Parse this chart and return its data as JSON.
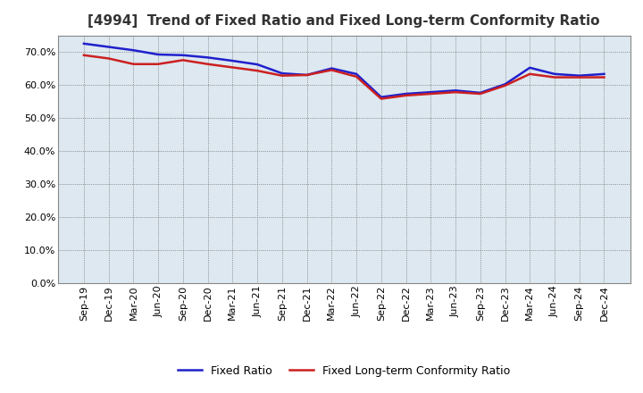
{
  "title": "[4994]  Trend of Fixed Ratio and Fixed Long-term Conformity Ratio",
  "x_labels": [
    "Sep-19",
    "Dec-19",
    "Mar-20",
    "Jun-20",
    "Sep-20",
    "Dec-20",
    "Mar-21",
    "Jun-21",
    "Sep-21",
    "Dec-21",
    "Mar-22",
    "Jun-22",
    "Sep-22",
    "Dec-22",
    "Mar-23",
    "Jun-23",
    "Sep-23",
    "Dec-23",
    "Mar-24",
    "Jun-24",
    "Sep-24",
    "Dec-24"
  ],
  "fixed_ratio": [
    72.5,
    71.5,
    70.5,
    69.2,
    69.0,
    68.3,
    67.3,
    66.2,
    63.5,
    63.0,
    65.0,
    63.3,
    56.3,
    57.3,
    57.8,
    58.3,
    57.6,
    60.2,
    65.2,
    63.3,
    62.8,
    63.3
  ],
  "fixed_lt_conformity": [
    69.0,
    68.0,
    66.3,
    66.3,
    67.5,
    66.3,
    65.3,
    64.3,
    62.8,
    63.0,
    64.5,
    62.5,
    55.8,
    56.8,
    57.3,
    57.8,
    57.3,
    59.8,
    63.3,
    62.3,
    62.3,
    62.3
  ],
  "fixed_ratio_color": "#2020cc",
  "fixed_lt_color": "#cc2020",
  "ylim_min": 0,
  "ylim_max": 75,
  "yticks": [
    0,
    10,
    20,
    30,
    40,
    50,
    60,
    70
  ],
  "bg_color": "#ffffff",
  "plot_bg_color": "#dde8f0",
  "grid_color": "#555555",
  "title_fontsize": 11,
  "tick_fontsize": 8,
  "legend_label_fixed": "Fixed Ratio",
  "legend_label_lt": "Fixed Long-term Conformity Ratio",
  "line_width": 1.8
}
